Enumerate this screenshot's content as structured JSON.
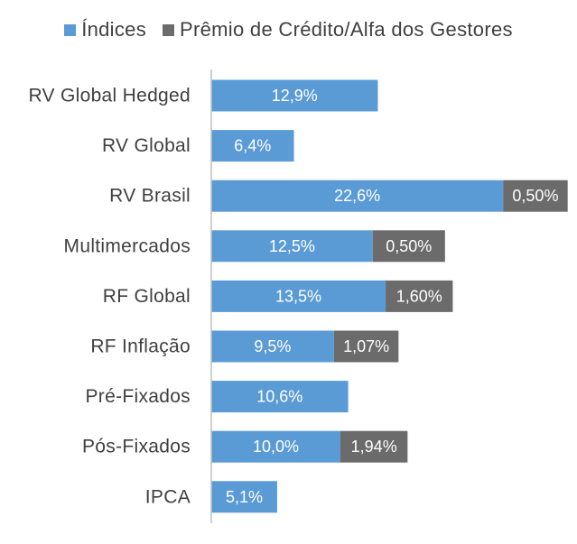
{
  "legend": {
    "indices_label": "Índices",
    "premium_label": "Prêmio de Crédito/Alfa dos Gestores"
  },
  "colors": {
    "indices": "#5b9bd5",
    "premium": "#6b6b6b",
    "axis": "#bfbfbf",
    "category_text": "#404040",
    "bar_text": "#ffffff"
  },
  "chart_data": {
    "type": "bar",
    "orientation": "horizontal",
    "stacked": true,
    "legend_position": "top",
    "grid": false,
    "categories": [
      "RV Global Hedged",
      "RV Global",
      "RV Brasil",
      "Multimercados",
      "RF Global",
      "RF Inflação",
      "Pré-Fixados",
      "Pós-Fixados",
      "IPCA"
    ],
    "series": [
      {
        "name": "Índices",
        "values": [
          12.9,
          6.4,
          22.6,
          12.5,
          13.5,
          9.5,
          10.6,
          10.0,
          5.1
        ],
        "labels": [
          "12,9%",
          "6,4%",
          "22,6%",
          "12,5%",
          "13,5%",
          "9,5%",
          "10,6%",
          "10,0%",
          "5,1%"
        ]
      },
      {
        "name": "Prêmio de Crédito/Alfa dos Gestores",
        "values": [
          null,
          null,
          0.5,
          0.5,
          1.6,
          1.07,
          null,
          1.94,
          null
        ],
        "labels": [
          "",
          "",
          "0,50%",
          "0,50%",
          "1,60%",
          "1,07%",
          "",
          "1,94%",
          ""
        ],
        "display_values": [
          null,
          null,
          5.0,
          5.6,
          5.2,
          5.0,
          null,
          5.2,
          null
        ]
      }
    ],
    "xlim": [
      0,
      29
    ]
  }
}
